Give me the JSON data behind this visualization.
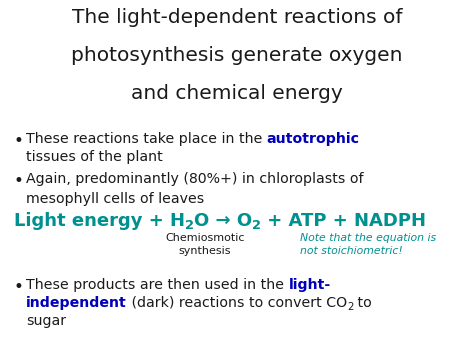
{
  "bg_color": "#ffffff",
  "title_lines": [
    "The light-dependent reactions of",
    "photosynthesis generate oxygen",
    "and chemical energy"
  ],
  "title_color": "#1a1a1a",
  "title_fontsize": 14.5,
  "bullet_color": "#1a1a1a",
  "highlight_color": "#0000bb",
  "eq_color": "#009090",
  "note_color": "#009090",
  "bullet_fontsize": 10.2,
  "eq_fontsize": 13.0,
  "note_fontsize": 7.8,
  "chemio_fontsize": 8.0
}
